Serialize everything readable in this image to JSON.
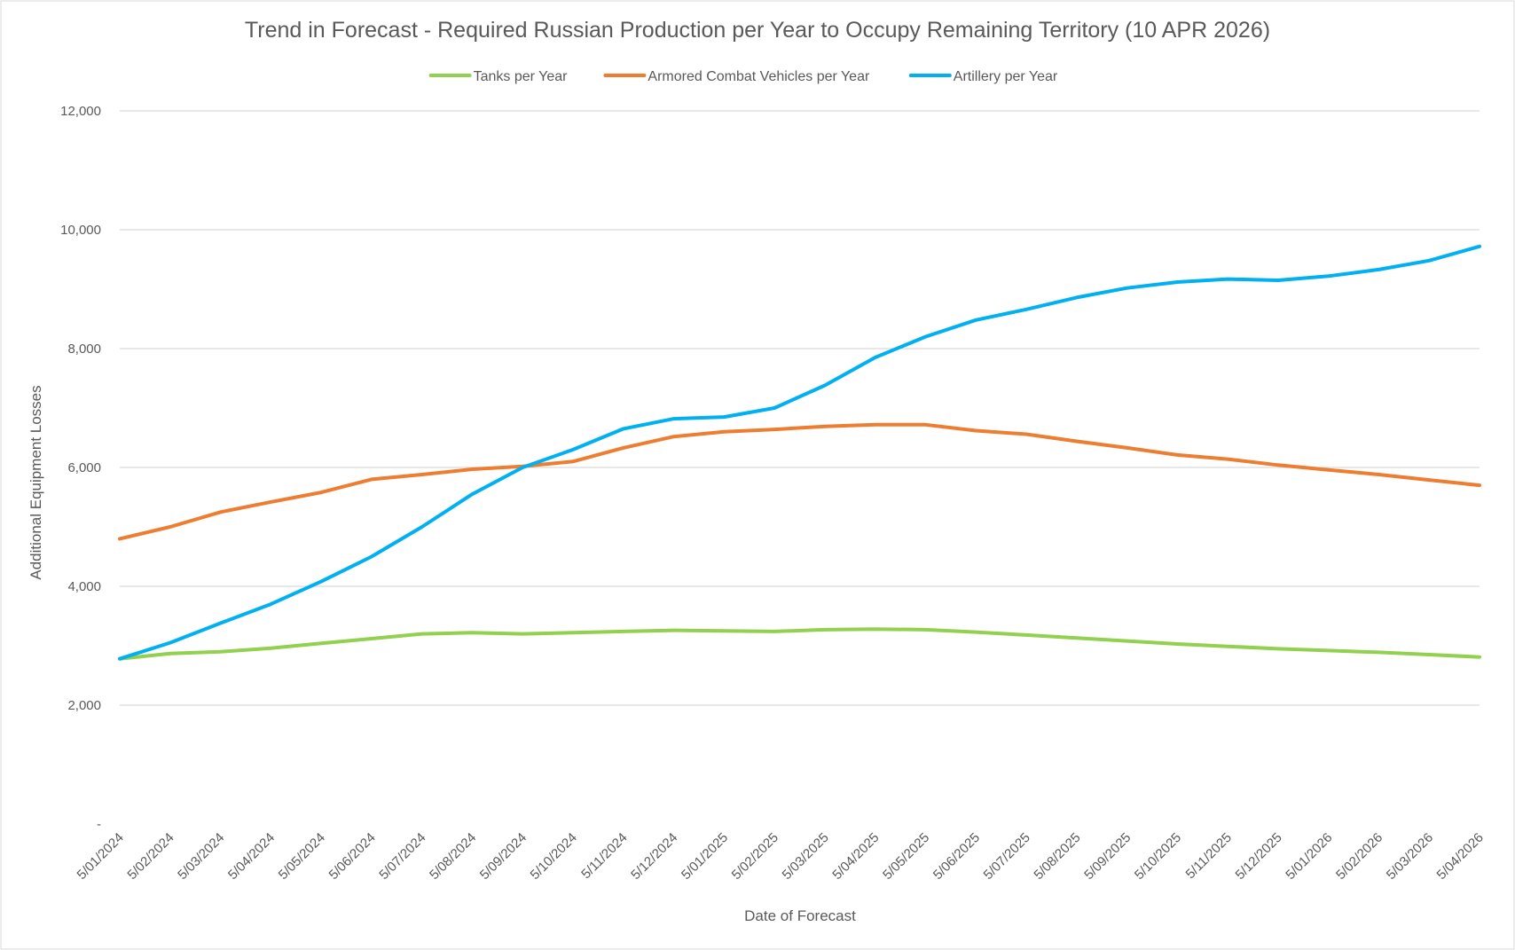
{
  "chart_data": {
    "type": "line",
    "title": "Trend in Forecast - Required Russian Production per Year to Occupy Remaining Territory (10 APR 2026)",
    "xlabel": "Date of Forecast",
    "ylabel": "Additional Equipment Losses",
    "ylim": [
      0,
      12000
    ],
    "yticks": [
      {
        "value": 0,
        "label": "-"
      },
      {
        "value": 2000,
        "label": "2,000"
      },
      {
        "value": 4000,
        "label": "4,000"
      },
      {
        "value": 6000,
        "label": "6,000"
      },
      {
        "value": 8000,
        "label": "8,000"
      },
      {
        "value": 10000,
        "label": "10,000"
      },
      {
        "value": 12000,
        "label": "12,000"
      }
    ],
    "grid": "horizontal",
    "legend_position": "top",
    "x_tick_labels": [
      "5/01/2024",
      "5/02/2024",
      "5/03/2024",
      "5/04/2024",
      "5/05/2024",
      "5/06/2024",
      "5/07/2024",
      "5/08/2024",
      "5/09/2024",
      "5/10/2024",
      "5/11/2024",
      "5/12/2024",
      "5/01/2025",
      "5/02/2025",
      "5/03/2025",
      "5/04/2025",
      "5/05/2025",
      "5/06/2025",
      "5/07/2025",
      "5/08/2025",
      "5/09/2025",
      "5/10/2025",
      "5/11/2025",
      "5/12/2025",
      "5/01/2026",
      "5/02/2026",
      "5/03/2026",
      "5/04/2026"
    ],
    "x": [
      "5/01/2024",
      "5/02/2024",
      "5/03/2024",
      "5/04/2024",
      "5/05/2024",
      "5/06/2024",
      "5/07/2024",
      "5/08/2024",
      "5/09/2024",
      "5/10/2024",
      "5/11/2024",
      "5/12/2024",
      "5/01/2025",
      "5/02/2025",
      "5/03/2025",
      "5/04/2025",
      "5/05/2025",
      "5/06/2025",
      "5/07/2025",
      "5/08/2025",
      "5/09/2025",
      "5/10/2025",
      "5/11/2025",
      "5/12/2025",
      "5/01/2026",
      "5/02/2026",
      "5/03/2026",
      "5/04/2026"
    ],
    "series": [
      {
        "name": "Tanks per Year",
        "color": "#92d050",
        "values": [
          2780,
          2870,
          2900,
          2960,
          3040,
          3120,
          3200,
          3220,
          3200,
          3220,
          3240,
          3260,
          3250,
          3240,
          3270,
          3280,
          3270,
          3230,
          3180,
          3130,
          3080,
          3030,
          2990,
          2950,
          2920,
          2890,
          2850,
          2810
        ]
      },
      {
        "name": "Armored Combat Vehicles per Year",
        "color": "#ed7d31",
        "values": [
          4800,
          5000,
          5250,
          5420,
          5580,
          5800,
          5880,
          5970,
          6020,
          6100,
          6330,
          6520,
          6600,
          6640,
          6690,
          6720,
          6720,
          6620,
          6560,
          6440,
          6330,
          6210,
          6140,
          6040,
          5960,
          5880,
          5790,
          5700
        ]
      },
      {
        "name": "Artillery per Year",
        "color": "#00b0f0",
        "values": [
          2780,
          3050,
          3380,
          3700,
          4080,
          4500,
          5000,
          5550,
          6000,
          6300,
          6650,
          6820,
          6850,
          7000,
          7380,
          7850,
          8200,
          8480,
          8660,
          8860,
          9020,
          9120,
          9170,
          9150,
          9220,
          9330,
          9480,
          9720
        ]
      }
    ]
  }
}
